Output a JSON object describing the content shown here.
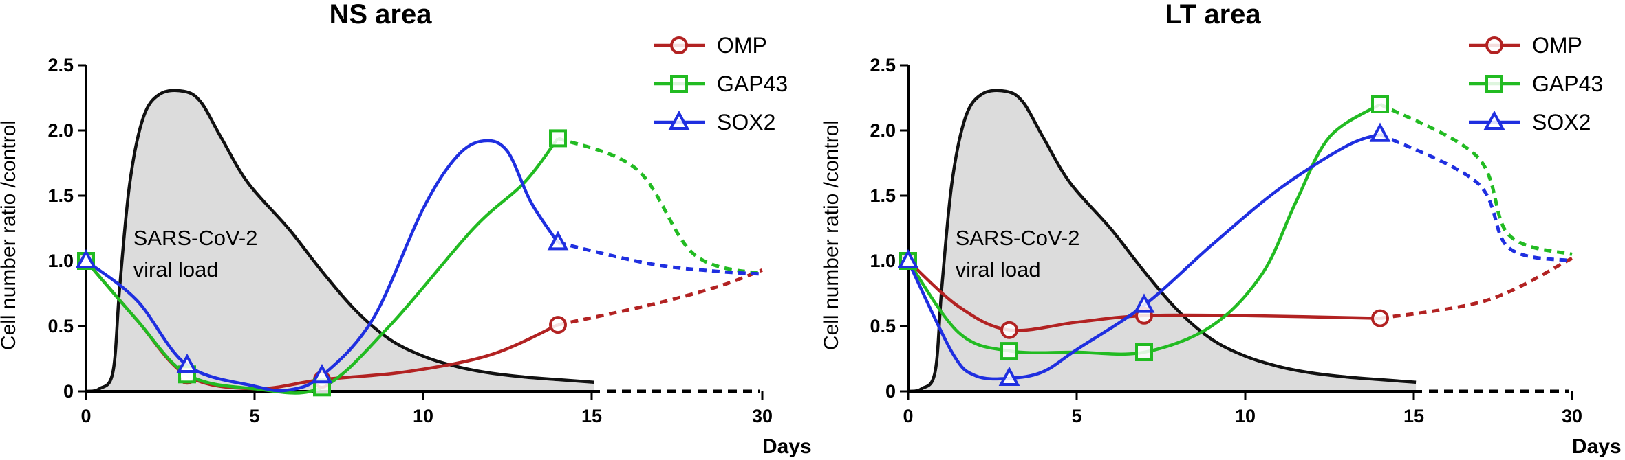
{
  "chart_data": [
    {
      "type": "line",
      "title": "NS area",
      "ylabel": "Cell number ratio /control",
      "xlabel": "Days",
      "x_ticks": [
        "0",
        "5",
        "10",
        "15",
        "30"
      ],
      "y_ticks": [
        "0",
        "0.5",
        "1.0",
        "1.5",
        "2.0",
        "2.5"
      ],
      "ylim": [
        0,
        2.5
      ],
      "xlim": [
        0,
        30
      ],
      "x_axis_break": "dashed segment between day 15 and day 30",
      "legend_position": "top-right",
      "viral_load": {
        "label_line1": "SARS-CoV-2",
        "label_line2": "viral load",
        "curve": [
          [
            0,
            0
          ],
          [
            0.4,
            0.02
          ],
          [
            0.8,
            0.15
          ],
          [
            1.0,
            0.8
          ],
          [
            1.3,
            1.6
          ],
          [
            1.7,
            2.1
          ],
          [
            2.2,
            2.28
          ],
          [
            2.9,
            2.3
          ],
          [
            3.4,
            2.22
          ],
          [
            4.0,
            1.95
          ],
          [
            4.8,
            1.6
          ],
          [
            6,
            1.25
          ],
          [
            7,
            0.92
          ],
          [
            8,
            0.62
          ],
          [
            9,
            0.4
          ],
          [
            10,
            0.27
          ],
          [
            11,
            0.19
          ],
          [
            12,
            0.14
          ],
          [
            13,
            0.11
          ],
          [
            14,
            0.09
          ],
          [
            15.2,
            0.07
          ]
        ]
      },
      "series": [
        {
          "name": "OMP",
          "color": "#b22222",
          "marker": "circle",
          "points": [
            [
              0,
              1.0
            ],
            [
              3,
              0.12
            ],
            [
              7,
              0.09
            ],
            [
              14,
              0.51
            ]
          ],
          "curve": [
            [
              0,
              1.0
            ],
            [
              1.5,
              0.55
            ],
            [
              3,
              0.12
            ],
            [
              5,
              0.02
            ],
            [
              7,
              0.09
            ],
            [
              9.5,
              0.15
            ],
            [
              12,
              0.28
            ],
            [
              14,
              0.51
            ]
          ],
          "dashed": [
            [
              14,
              0.51
            ],
            [
              20,
              0.66
            ],
            [
              26,
              0.8
            ],
            [
              30,
              0.93
            ]
          ]
        },
        {
          "name": "GAP43",
          "color": "#22bb22",
          "marker": "square",
          "points": [
            [
              0,
              1.0
            ],
            [
              3,
              0.13
            ],
            [
              7,
              0.03
            ],
            [
              14,
              1.94
            ]
          ],
          "curve": [
            [
              0,
              1.0
            ],
            [
              1.5,
              0.55
            ],
            [
              3,
              0.13
            ],
            [
              5,
              0.02
            ],
            [
              7,
              0.03
            ],
            [
              9,
              0.5
            ],
            [
              11.5,
              1.25
            ],
            [
              13,
              1.6
            ],
            [
              14,
              1.94
            ]
          ],
          "dashed": [
            [
              14,
              1.94
            ],
            [
              19,
              1.7
            ],
            [
              24,
              1.05
            ],
            [
              30,
              0.9
            ]
          ]
        },
        {
          "name": "SOX2",
          "color": "#1f2fe0",
          "marker": "triangle",
          "points": [
            [
              0,
              1.0
            ],
            [
              3,
              0.2
            ],
            [
              7,
              0.12
            ],
            [
              14,
              1.14
            ]
          ],
          "curve": [
            [
              0,
              1.0
            ],
            [
              1.5,
              0.7
            ],
            [
              3,
              0.2
            ],
            [
              5,
              0.04
            ],
            [
              6,
              0.01
            ],
            [
              7,
              0.12
            ],
            [
              8.5,
              0.55
            ],
            [
              10,
              1.4
            ],
            [
              11,
              1.8
            ],
            [
              11.8,
              1.92
            ],
            [
              12.5,
              1.84
            ],
            [
              13.2,
              1.45
            ],
            [
              14,
              1.14
            ]
          ],
          "dashed": [
            [
              14,
              1.14
            ],
            [
              20,
              0.98
            ],
            [
              26,
              0.92
            ],
            [
              30,
              0.9
            ]
          ]
        }
      ]
    },
    {
      "type": "line",
      "title": "LT area",
      "ylabel": "Cell number ratio /control",
      "xlabel": "Days",
      "x_ticks": [
        "0",
        "5",
        "10",
        "15",
        "30"
      ],
      "y_ticks": [
        "0",
        "0.5",
        "1.0",
        "1.5",
        "2.0",
        "2.5"
      ],
      "ylim": [
        0,
        2.5
      ],
      "xlim": [
        0,
        30
      ],
      "x_axis_break": "dashed segment between day 15 and day 30",
      "legend_position": "top-right",
      "viral_load": {
        "label_line1": "SARS-CoV-2",
        "label_line2": "viral load",
        "curve": [
          [
            0,
            0
          ],
          [
            0.4,
            0.02
          ],
          [
            0.8,
            0.15
          ],
          [
            1.0,
            0.8
          ],
          [
            1.3,
            1.6
          ],
          [
            1.7,
            2.1
          ],
          [
            2.2,
            2.28
          ],
          [
            2.9,
            2.3
          ],
          [
            3.4,
            2.22
          ],
          [
            4.0,
            1.95
          ],
          [
            4.8,
            1.6
          ],
          [
            6,
            1.25
          ],
          [
            7,
            0.92
          ],
          [
            8,
            0.62
          ],
          [
            9,
            0.4
          ],
          [
            10,
            0.27
          ],
          [
            11,
            0.19
          ],
          [
            12,
            0.14
          ],
          [
            13,
            0.11
          ],
          [
            14,
            0.09
          ],
          [
            15.2,
            0.07
          ]
        ]
      },
      "series": [
        {
          "name": "OMP",
          "color": "#b22222",
          "marker": "circle",
          "points": [
            [
              0,
              1.0
            ],
            [
              3,
              0.47
            ],
            [
              7,
              0.58
            ],
            [
              14,
              0.56
            ]
          ],
          "curve": [
            [
              0,
              1.0
            ],
            [
              1.5,
              0.65
            ],
            [
              3,
              0.47
            ],
            [
              5,
              0.53
            ],
            [
              7,
              0.58
            ],
            [
              10,
              0.58
            ],
            [
              14,
              0.56
            ]
          ],
          "dashed": [
            [
              14,
              0.56
            ],
            [
              22,
              0.7
            ],
            [
              30,
              1.02
            ]
          ]
        },
        {
          "name": "GAP43",
          "color": "#22bb22",
          "marker": "square",
          "points": [
            [
              0,
              1.0
            ],
            [
              3,
              0.31
            ],
            [
              7,
              0.3
            ],
            [
              14,
              2.2
            ]
          ],
          "curve": [
            [
              0,
              1.0
            ],
            [
              1.5,
              0.45
            ],
            [
              3,
              0.31
            ],
            [
              5,
              0.3
            ],
            [
              7,
              0.3
            ],
            [
              9,
              0.5
            ],
            [
              10.5,
              0.9
            ],
            [
              11.5,
              1.45
            ],
            [
              12.5,
              1.95
            ],
            [
              14,
              2.2
            ]
          ],
          "dashed": [
            [
              14,
              2.2
            ],
            [
              21,
              1.8
            ],
            [
              24,
              1.2
            ],
            [
              30,
              1.05
            ]
          ]
        },
        {
          "name": "SOX2",
          "color": "#1f2fe0",
          "marker": "triangle",
          "points": [
            [
              0,
              1.0
            ],
            [
              3,
              0.1
            ],
            [
              7,
              0.66
            ],
            [
              14,
              1.97
            ]
          ],
          "curve": [
            [
              0,
              1.0
            ],
            [
              1.3,
              0.3
            ],
            [
              2,
              0.12
            ],
            [
              3,
              0.1
            ],
            [
              4,
              0.15
            ],
            [
              5,
              0.32
            ],
            [
              7,
              0.66
            ],
            [
              9,
              1.12
            ],
            [
              11,
              1.55
            ],
            [
              13,
              1.88
            ],
            [
              14,
              1.97
            ]
          ],
          "dashed": [
            [
              14,
              1.97
            ],
            [
              21,
              1.6
            ],
            [
              24,
              1.1
            ],
            [
              30,
              1.0
            ]
          ]
        }
      ]
    }
  ]
}
